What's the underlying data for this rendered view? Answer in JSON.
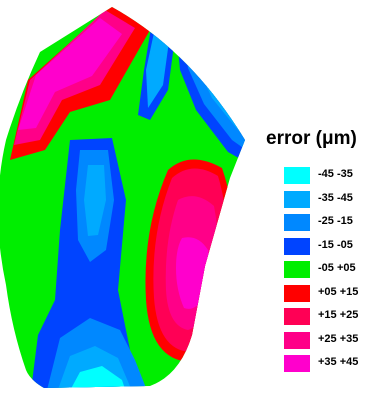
{
  "chart_data": {
    "type": "heatmap",
    "title": "",
    "legend": {
      "title": "error (μm)",
      "placement": "right",
      "items": [
        {
          "label": "-45 -35",
          "color": "#00ffff"
        },
        {
          "label": "-35 -45",
          "color": "#00aaff"
        },
        {
          "label": "-25 -15",
          "color": "#0088ff"
        },
        {
          "label": "-15 -05",
          "color": "#0044ff"
        },
        {
          "label": "-05 +05",
          "color": "#00ee00"
        },
        {
          "label": "+05 +15",
          "color": "#ff0000"
        },
        {
          "label": "+15 +25",
          "color": "#ff0055"
        },
        {
          "label": "+25 +35",
          "color": "#ff0088"
        },
        {
          "label": "+35 +45",
          "color": "#ff00cc"
        }
      ]
    }
  }
}
